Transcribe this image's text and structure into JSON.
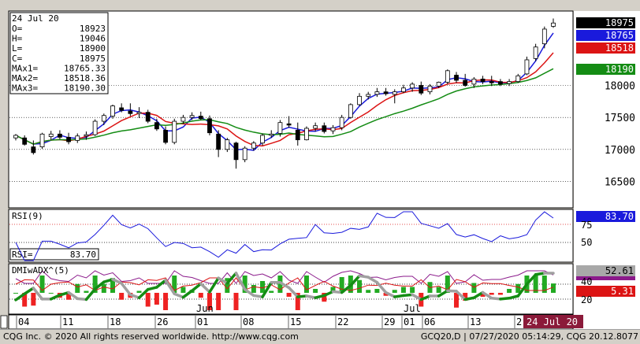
{
  "ohlc_box": {
    "date": "24 Jul 20",
    "rows": [
      {
        "label": "O=",
        "value": "18923"
      },
      {
        "label": "H=",
        "value": "19046"
      },
      {
        "label": "L=",
        "value": "18900"
      },
      {
        "label": "C=",
        "value": "18975"
      },
      {
        "label": "MAx1=",
        "value": "18765.33"
      },
      {
        "label": "MAx2=",
        "value": "18518.36"
      },
      {
        "label": "MAx3=",
        "value": "18190.30"
      }
    ]
  },
  "price_tags": [
    {
      "text": "18975",
      "value": 18975,
      "bg": "#000000",
      "fg": "#ffffff"
    },
    {
      "text": "18765",
      "value": 18765,
      "bg": "#1a1adc",
      "fg": "#ffffff"
    },
    {
      "text": "18518",
      "value": 18518,
      "bg": "#dc1414",
      "fg": "#ffffff"
    },
    {
      "text": "18190",
      "value": 18190,
      "bg": "#148c14",
      "fg": "#ffffff"
    }
  ],
  "rsi_panel": {
    "title": "RSI(9)",
    "readout_label": "RSI=",
    "readout_value": "83.70",
    "tag": "83.70",
    "tag_color": "#1a1adc",
    "ticks": [
      "75",
      "50"
    ]
  },
  "dmi_panel": {
    "title": "DMIwADX^(5)",
    "tags": [
      {
        "text": "52.61",
        "bg": "#a8a8a8",
        "fg": "#000000"
      },
      {
        "text": "",
        "bg": "#8b1a8b",
        "fg": "#ffffff"
      },
      {
        "text": "5.31",
        "bg": "#dc1414",
        "fg": "#ffffff"
      }
    ],
    "ticks": [
      "40",
      "20"
    ]
  },
  "date_axis": {
    "day_labels": [
      "04",
      "11",
      "18",
      "26",
      "01",
      "08",
      "15",
      "22",
      "29",
      "01",
      "06",
      "13",
      "2"
    ],
    "month_labels": [
      "Jun",
      "Jul"
    ],
    "current_label": "24 Jul 20"
  },
  "footer": {
    "left": "CQG Inc. © 2020 All rights reserved worldwide. http://www.cqg.com",
    "right": "GCQ20,D | 07/27/2020 05:14:29, CQG 20.12.8077"
  },
  "colors": {
    "ma1": "#1a1adc",
    "ma2": "#dc1414",
    "ma3": "#148c14",
    "rsi": "#1a1adc",
    "dmi_plus": "#8b1a8b",
    "dmi_minus": "#dc1414",
    "adx_up": "#148c14",
    "adx_down": "#a0a0a0"
  },
  "chart_data": {
    "type": "candlestick",
    "y_axis_labels": [
      "18000",
      "17500",
      "17000",
      "16500"
    ],
    "ylim": [
      16100,
      19150
    ],
    "candles": [
      {
        "o": 17180,
        "h": 17240,
        "l": 17140,
        "c": 17220
      },
      {
        "o": 17180,
        "h": 17220,
        "l": 17060,
        "c": 17080
      },
      {
        "o": 17040,
        "h": 17140,
        "l": 16920,
        "c": 16950
      },
      {
        "o": 17040,
        "h": 17260,
        "l": 17010,
        "c": 17240
      },
      {
        "o": 17200,
        "h": 17290,
        "l": 17150,
        "c": 17240
      },
      {
        "o": 17240,
        "h": 17300,
        "l": 17160,
        "c": 17190
      },
      {
        "o": 17190,
        "h": 17260,
        "l": 17080,
        "c": 17120
      },
      {
        "o": 17140,
        "h": 17250,
        "l": 17100,
        "c": 17210
      },
      {
        "o": 17210,
        "h": 17280,
        "l": 17150,
        "c": 17230
      },
      {
        "o": 17230,
        "h": 17470,
        "l": 17210,
        "c": 17440
      },
      {
        "o": 17440,
        "h": 17560,
        "l": 17380,
        "c": 17530
      },
      {
        "o": 17520,
        "h": 17700,
        "l": 17480,
        "c": 17680
      },
      {
        "o": 17650,
        "h": 17720,
        "l": 17580,
        "c": 17610
      },
      {
        "o": 17600,
        "h": 17720,
        "l": 17520,
        "c": 17560
      },
      {
        "o": 17560,
        "h": 17660,
        "l": 17490,
        "c": 17580
      },
      {
        "o": 17580,
        "h": 17620,
        "l": 17410,
        "c": 17440
      },
      {
        "o": 17420,
        "h": 17480,
        "l": 17290,
        "c": 17320
      },
      {
        "o": 17300,
        "h": 17360,
        "l": 17080,
        "c": 17110
      },
      {
        "o": 17110,
        "h": 17480,
        "l": 17080,
        "c": 17440
      },
      {
        "o": 17440,
        "h": 17540,
        "l": 17400,
        "c": 17500
      },
      {
        "o": 17500,
        "h": 17580,
        "l": 17460,
        "c": 17530
      },
      {
        "o": 17520,
        "h": 17590,
        "l": 17460,
        "c": 17480
      },
      {
        "o": 17480,
        "h": 17530,
        "l": 17220,
        "c": 17260
      },
      {
        "o": 17240,
        "h": 17300,
        "l": 16880,
        "c": 17000
      },
      {
        "o": 17000,
        "h": 17180,
        "l": 16960,
        "c": 17150
      },
      {
        "o": 17100,
        "h": 17120,
        "l": 16700,
        "c": 16840
      },
      {
        "o": 16840,
        "h": 17050,
        "l": 16800,
        "c": 17020
      },
      {
        "o": 17020,
        "h": 17130,
        "l": 16980,
        "c": 17100
      },
      {
        "o": 17100,
        "h": 17250,
        "l": 17060,
        "c": 17220
      },
      {
        "o": 17220,
        "h": 17300,
        "l": 17180,
        "c": 17240
      },
      {
        "o": 17250,
        "h": 17460,
        "l": 17200,
        "c": 17420
      },
      {
        "o": 17400,
        "h": 17520,
        "l": 17340,
        "c": 17380
      },
      {
        "o": 17300,
        "h": 17420,
        "l": 17060,
        "c": 17150
      },
      {
        "o": 17150,
        "h": 17360,
        "l": 17140,
        "c": 17330
      },
      {
        "o": 17330,
        "h": 17420,
        "l": 17280,
        "c": 17370
      },
      {
        "o": 17370,
        "h": 17420,
        "l": 17250,
        "c": 17280
      },
      {
        "o": 17290,
        "h": 17380,
        "l": 17240,
        "c": 17340
      },
      {
        "o": 17340,
        "h": 17540,
        "l": 17300,
        "c": 17500
      },
      {
        "o": 17500,
        "h": 17720,
        "l": 17480,
        "c": 17700
      },
      {
        "o": 17700,
        "h": 17880,
        "l": 17680,
        "c": 17830
      },
      {
        "o": 17830,
        "h": 17900,
        "l": 17780,
        "c": 17860
      },
      {
        "o": 17860,
        "h": 17960,
        "l": 17820,
        "c": 17900
      },
      {
        "o": 17900,
        "h": 17960,
        "l": 17840,
        "c": 17870
      },
      {
        "o": 17860,
        "h": 17940,
        "l": 17720,
        "c": 17900
      },
      {
        "o": 17900,
        "h": 18010,
        "l": 17880,
        "c": 17960
      },
      {
        "o": 17960,
        "h": 18050,
        "l": 17900,
        "c": 18020
      },
      {
        "o": 18000,
        "h": 18060,
        "l": 17850,
        "c": 17880
      },
      {
        "o": 17900,
        "h": 18020,
        "l": 17860,
        "c": 17990
      },
      {
        "o": 17990,
        "h": 18060,
        "l": 17960,
        "c": 18050
      },
      {
        "o": 18050,
        "h": 18250,
        "l": 18020,
        "c": 18230
      },
      {
        "o": 18160,
        "h": 18210,
        "l": 18040,
        "c": 18080
      },
      {
        "o": 18080,
        "h": 18180,
        "l": 17980,
        "c": 18000
      },
      {
        "o": 18020,
        "h": 18130,
        "l": 17960,
        "c": 18100
      },
      {
        "o": 18100,
        "h": 18150,
        "l": 18020,
        "c": 18060
      },
      {
        "o": 18060,
        "h": 18150,
        "l": 17990,
        "c": 18040
      },
      {
        "o": 18060,
        "h": 18100,
        "l": 17990,
        "c": 18020
      },
      {
        "o": 18030,
        "h": 18100,
        "l": 17990,
        "c": 18060
      },
      {
        "o": 18060,
        "h": 18180,
        "l": 18040,
        "c": 18150
      },
      {
        "o": 18180,
        "h": 18450,
        "l": 18160,
        "c": 18400
      },
      {
        "o": 18420,
        "h": 18650,
        "l": 18380,
        "c": 18600
      },
      {
        "o": 18650,
        "h": 18920,
        "l": 18580,
        "c": 18880
      },
      {
        "o": 18923,
        "h": 19046,
        "l": 18900,
        "c": 18975
      }
    ]
  }
}
